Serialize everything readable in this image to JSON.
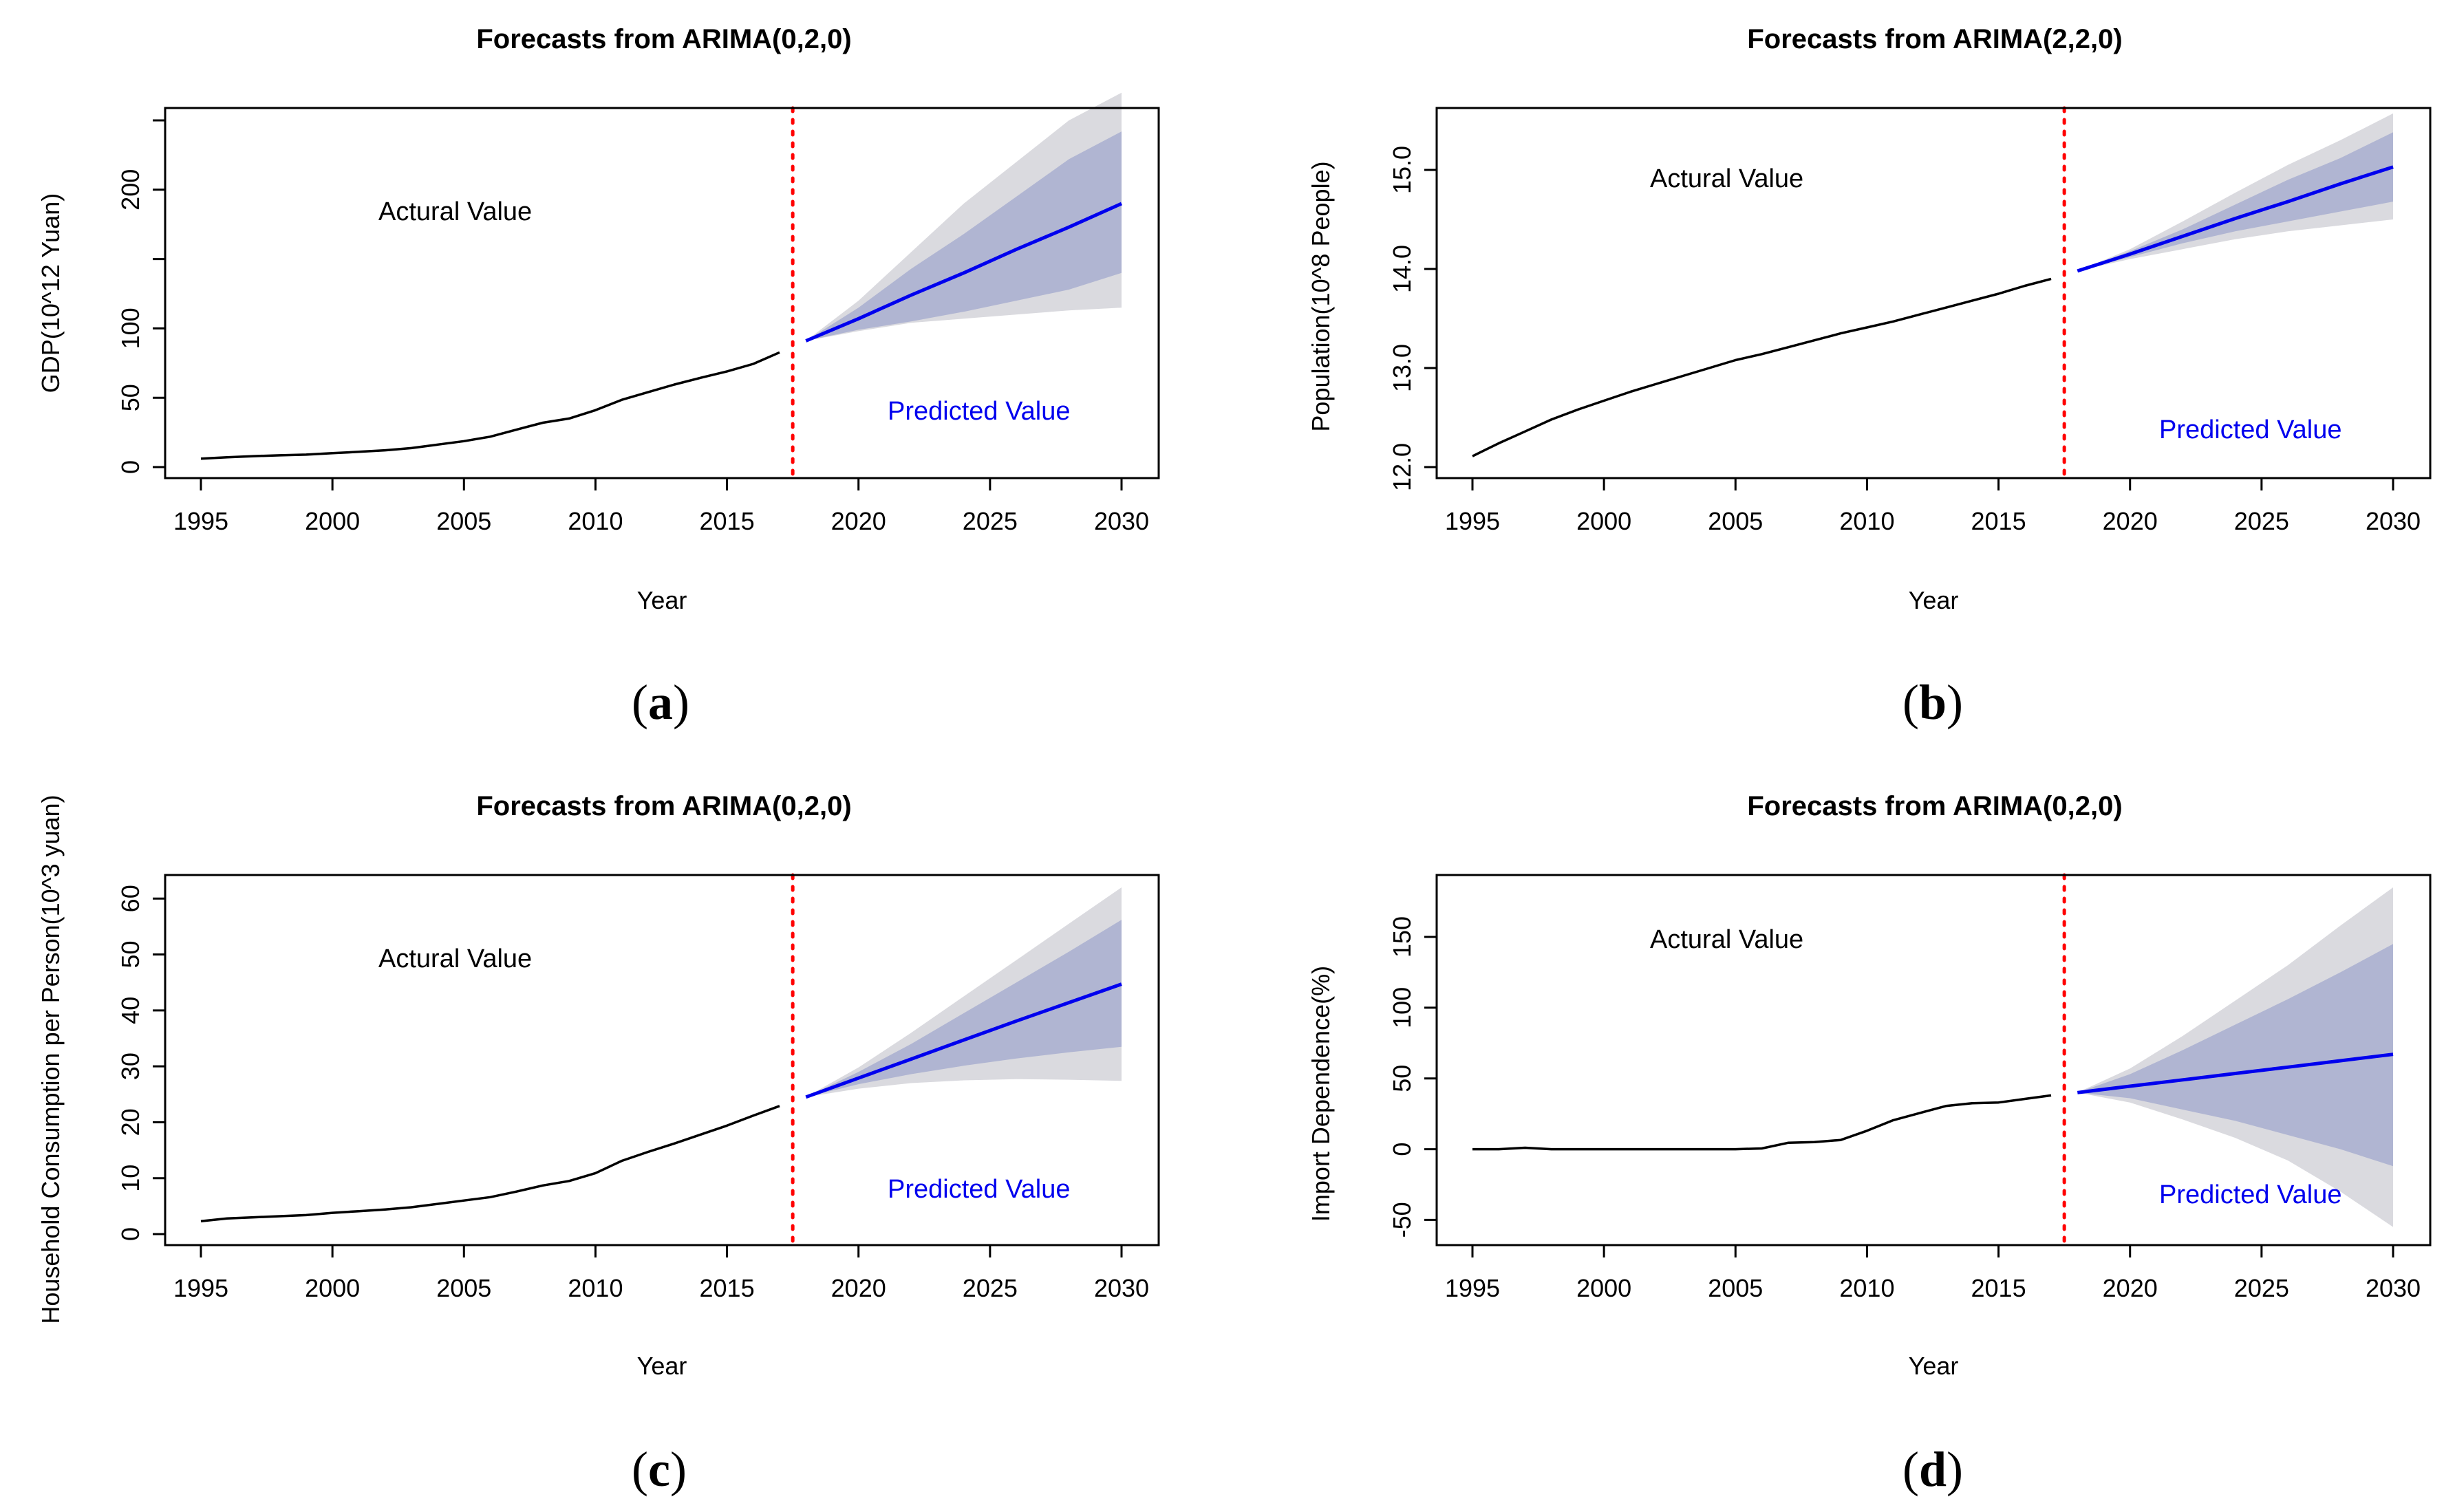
{
  "chart_data": [
    {
      "type": "line",
      "id": "a",
      "panel_label": "a",
      "title": "Forecasts from ARIMA(0,2,0)",
      "xlabel": "Year",
      "ylabel": "GDP(10^12 Yuan)",
      "xlim": [
        1995,
        2030
      ],
      "ylim": [
        0,
        250
      ],
      "xticks": [
        1995,
        2000,
        2005,
        2010,
        2015,
        2020,
        2025,
        2030
      ],
      "yticks": [
        0,
        50,
        100,
        200
      ],
      "annotations": {
        "actual": "Actural Value",
        "predicted": "Predicted Value"
      },
      "split_x": 2017.5,
      "actual": {
        "x": [
          1995,
          1996,
          1997,
          1998,
          1999,
          2000,
          2001,
          2002,
          2003,
          2004,
          2005,
          2006,
          2007,
          2008,
          2009,
          2010,
          2011,
          2012,
          2013,
          2014,
          2015,
          2016,
          2017
        ],
        "y": [
          6.1,
          7.1,
          7.9,
          8.5,
          9.0,
          10.0,
          11.0,
          12.1,
          13.7,
          16.2,
          18.7,
          21.9,
          27.0,
          32.0,
          35.0,
          41.0,
          48.5,
          54.0,
          59.5,
          64.4,
          69.0,
          74.4,
          82.7
        ]
      },
      "forecast": {
        "x": [
          2018,
          2020,
          2022,
          2024,
          2026,
          2028,
          2030
        ],
        "mean": [
          91,
          107,
          124,
          140,
          157,
          173,
          190
        ],
        "lo80": [
          91,
          99,
          105,
          112,
          120,
          128,
          140
        ],
        "hi80": [
          91,
          115,
          143,
          168,
          195,
          222,
          242
        ],
        "lo95": [
          91,
          98,
          104,
          107,
          110,
          113,
          115
        ],
        "hi95": [
          91,
          120,
          155,
          190,
          220,
          250,
          270
        ]
      },
      "colors": {
        "actual": "#000000",
        "forecast": "#0000ee",
        "band80": "#b0b5d2",
        "band95": "#dadadf",
        "split": "#ff0000"
      }
    },
    {
      "type": "line",
      "id": "b",
      "panel_label": "b",
      "title": "Forecasts from ARIMA(2,2,0)",
      "xlabel": "Year",
      "ylabel": "Population(10^8 People)",
      "xlim": [
        1995,
        2030
      ],
      "ylim": [
        12.0,
        15.5
      ],
      "xticks": [
        1995,
        2000,
        2005,
        2010,
        2015,
        2020,
        2025,
        2030
      ],
      "yticks": [
        12.0,
        13.0,
        14.0,
        15.0
      ],
      "annotations": {
        "actual": "Actural Value",
        "predicted": "Predicted Value"
      },
      "split_x": 2017.5,
      "actual": {
        "x": [
          1995,
          1996,
          1997,
          1998,
          1999,
          2000,
          2001,
          2002,
          2003,
          2004,
          2005,
          2006,
          2007,
          2008,
          2009,
          2010,
          2011,
          2012,
          2013,
          2014,
          2015,
          2016,
          2017
        ],
        "y": [
          12.11,
          12.24,
          12.36,
          12.48,
          12.58,
          12.67,
          12.76,
          12.84,
          12.92,
          13.0,
          13.08,
          13.14,
          13.21,
          13.28,
          13.35,
          13.41,
          13.47,
          13.54,
          13.61,
          13.68,
          13.75,
          13.83,
          13.9
        ]
      },
      "forecast": {
        "x": [
          2018,
          2020,
          2022,
          2024,
          2026,
          2028,
          2030
        ],
        "mean": [
          13.98,
          14.15,
          14.33,
          14.51,
          14.68,
          14.86,
          15.03
        ],
        "lo80": [
          13.98,
          14.12,
          14.26,
          14.38,
          14.48,
          14.58,
          14.68
        ],
        "hi80": [
          13.98,
          14.18,
          14.4,
          14.65,
          14.9,
          15.12,
          15.38
        ],
        "lo95": [
          13.98,
          14.1,
          14.2,
          14.3,
          14.38,
          14.44,
          14.5
        ],
        "hi95": [
          13.98,
          14.2,
          14.48,
          14.77,
          15.05,
          15.3,
          15.57
        ]
      },
      "colors": {
        "actual": "#000000",
        "forecast": "#0000ee",
        "band80": "#b0b5d2",
        "band95": "#dadadf",
        "split": "#ff0000"
      }
    },
    {
      "type": "line",
      "id": "c",
      "panel_label": "c",
      "title": "Forecasts from ARIMA(0,2,0)",
      "xlabel": "Year",
      "ylabel": "Household Consumption per Person(10^3 yuan)",
      "xlim": [
        1995,
        2030
      ],
      "ylim": [
        0,
        62
      ],
      "xticks": [
        1995,
        2000,
        2005,
        2010,
        2015,
        2020,
        2025,
        2030
      ],
      "yticks": [
        0,
        10,
        20,
        30,
        40,
        50,
        60
      ],
      "annotations": {
        "actual": "Actural Value",
        "predicted": "Predicted Value"
      },
      "split_x": 2017.5,
      "actual": {
        "x": [
          1995,
          1996,
          1997,
          1998,
          1999,
          2000,
          2001,
          2002,
          2003,
          2004,
          2005,
          2006,
          2007,
          2008,
          2009,
          2010,
          2011,
          2012,
          2013,
          2014,
          2015,
          2016,
          2017
        ],
        "y": [
          2.3,
          2.8,
          3.0,
          3.2,
          3.4,
          3.8,
          4.1,
          4.4,
          4.8,
          5.4,
          6.0,
          6.6,
          7.6,
          8.7,
          9.5,
          10.9,
          13.1,
          14.7,
          16.2,
          17.8,
          19.4,
          21.2,
          22.9
        ]
      },
      "forecast": {
        "x": [
          2018,
          2020,
          2022,
          2024,
          2026,
          2028,
          2030
        ],
        "mean": [
          24.5,
          27.9,
          31.3,
          34.7,
          38.1,
          41.4,
          44.7
        ],
        "lo80": [
          24.5,
          26.8,
          28.6,
          30.1,
          31.4,
          32.5,
          33.5
        ],
        "hi80": [
          24.5,
          29.0,
          34.0,
          39.5,
          45.0,
          50.5,
          56.2
        ],
        "lo95": [
          24.5,
          26.0,
          27.0,
          27.5,
          27.7,
          27.6,
          27.4
        ],
        "hi95": [
          24.5,
          29.8,
          36.0,
          42.5,
          49.0,
          55.5,
          62.0
        ]
      },
      "colors": {
        "actual": "#000000",
        "forecast": "#0000ee",
        "band80": "#b0b5d2",
        "band95": "#dadadf",
        "split": "#ff0000"
      }
    },
    {
      "type": "line",
      "id": "d",
      "panel_label": "d",
      "title": "Forecasts from ARIMA(0,2,0)",
      "xlabel": "Year",
      "ylabel": "Import Dependence(%)",
      "xlim": [
        1995,
        2030
      ],
      "ylim": [
        -60,
        185
      ],
      "xticks": [
        1995,
        2000,
        2005,
        2010,
        2015,
        2020,
        2025,
        2030
      ],
      "yticks": [
        -50,
        0,
        50,
        100,
        150
      ],
      "annotations": {
        "actual": "Actural Value",
        "predicted": "Predicted Value"
      },
      "split_x": 2017.5,
      "actual": {
        "x": [
          1995,
          1996,
          1997,
          1998,
          1999,
          2000,
          2001,
          2002,
          2003,
          2004,
          2005,
          2006,
          2007,
          2008,
          2009,
          2010,
          2011,
          2012,
          2013,
          2014,
          2015,
          2016,
          2017
        ],
        "y": [
          0,
          0,
          1,
          0,
          0,
          0,
          0,
          0,
          0,
          0,
          0,
          0.5,
          4.5,
          5,
          6.5,
          13,
          20.5,
          25.5,
          30.5,
          32.5,
          33,
          35.5,
          38
        ]
      },
      "forecast": {
        "x": [
          2018,
          2020,
          2022,
          2024,
          2026,
          2028,
          2030
        ],
        "mean": [
          40,
          44.5,
          49,
          53.5,
          58,
          62.5,
          67
        ],
        "lo80": [
          40,
          36,
          28,
          20,
          10,
          0,
          -12
        ],
        "hi80": [
          40,
          53,
          70,
          88,
          106,
          125,
          145
        ],
        "lo95": [
          40,
          33,
          21,
          8,
          -8,
          -30,
          -55
        ],
        "hi95": [
          40,
          57,
          80,
          105,
          130,
          158,
          185
        ]
      },
      "colors": {
        "actual": "#000000",
        "forecast": "#0000ee",
        "band80": "#b0b5d2",
        "band95": "#dadadf",
        "split": "#ff0000"
      }
    }
  ]
}
